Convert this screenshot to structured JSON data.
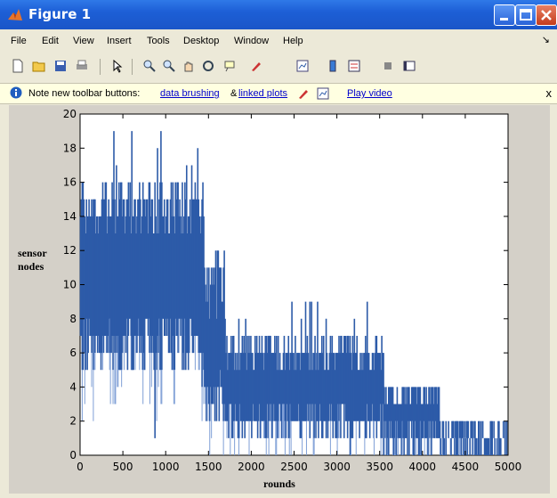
{
  "window": {
    "title": "Figure 1"
  },
  "menu": [
    "File",
    "Edit",
    "View",
    "Insert",
    "Tools",
    "Desktop",
    "Window",
    "Help"
  ],
  "menu_more": "↘",
  "toolbar_icons": [
    "new-figure-icon",
    "open-file-icon",
    "save-icon",
    "print-icon",
    "pointer-icon",
    "zoom-in-icon",
    "zoom-out-icon",
    "pan-icon",
    "rotate-icon",
    "data-cursor-icon",
    "brush-icon",
    "link-plot-icon",
    "colorbar-icon",
    "legend-icon",
    "hide-plot-tools-icon",
    "show-plot-tools-icon"
  ],
  "notification": {
    "text": "Note new toolbar buttons:",
    "link1": "data brushing",
    "amp": "&",
    "link2": "linked plots",
    "link3": "Play video",
    "close": "x"
  },
  "chart_data": {
    "type": "bar",
    "xlabel": "rounds",
    "ylabel": "sensor\nnodes",
    "xlim": [
      0,
      5000
    ],
    "ylim": [
      0,
      20
    ],
    "xticks": [
      0,
      500,
      1000,
      1500,
      2000,
      2500,
      3000,
      3500,
      4000,
      4500,
      5000
    ],
    "yticks": [
      0,
      2,
      4,
      6,
      8,
      10,
      12,
      14,
      16,
      18,
      20
    ],
    "bar_color": "#2d5ba8",
    "envelope": [
      {
        "x_start": 0,
        "x_end": 1450,
        "low_min": 5,
        "low_max": 8,
        "high_min": 13,
        "high_max": 16,
        "peak": 19,
        "dip": 0
      },
      {
        "x_start": 1450,
        "x_end": 1700,
        "low_min": 2,
        "low_max": 5,
        "high_min": 8,
        "high_max": 12,
        "peak": 14,
        "dip": 0
      },
      {
        "x_start": 1700,
        "x_end": 3550,
        "low_min": 1,
        "low_max": 3,
        "high_min": 5,
        "high_max": 7,
        "peak": 10,
        "dip": 0
      },
      {
        "x_start": 3550,
        "x_end": 4200,
        "low_min": 0,
        "low_max": 2,
        "high_min": 3,
        "high_max": 4,
        "peak": 5,
        "dip": 0
      },
      {
        "x_start": 4200,
        "x_end": 5000,
        "low_min": 0,
        "low_max": 1,
        "high_min": 1,
        "high_max": 2,
        "peak": 2,
        "dip": 0
      }
    ]
  }
}
